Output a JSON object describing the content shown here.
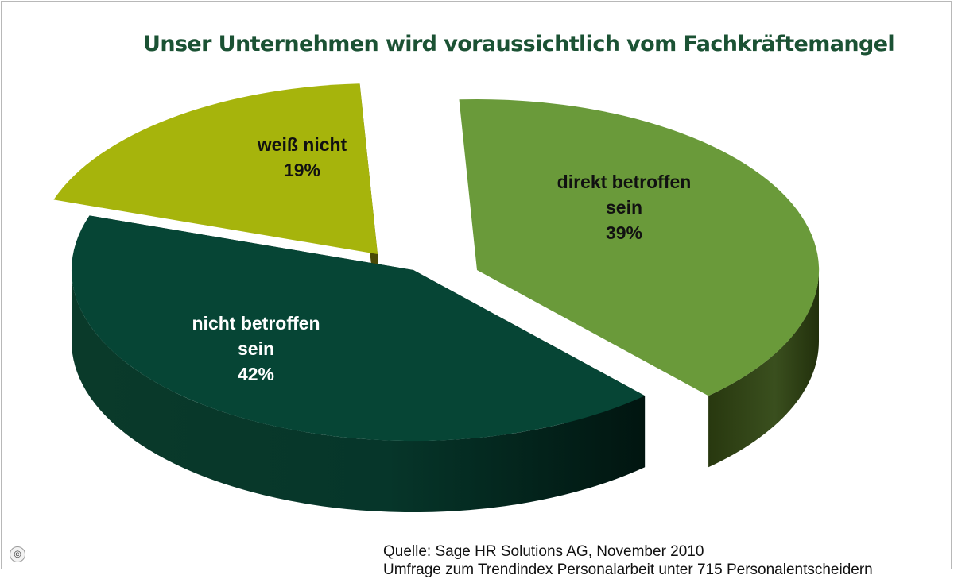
{
  "chart_data": {
    "type": "pie",
    "title": "Unser Unternehmen wird voraussichtlich vom Fachkräftemangel",
    "slices": [
      {
        "label_lines": [
          "direkt betroffen",
          "sein"
        ],
        "value": 39,
        "value_label": "39%",
        "color": "#6a9a3a",
        "side_color": "#2e3f18",
        "label_color": "#111111"
      },
      {
        "label_lines": [
          "nicht betroffen",
          "sein"
        ],
        "value": 42,
        "value_label": "42%",
        "color": "#064535",
        "side_color": "#022219",
        "label_color": "#ffffff"
      },
      {
        "label_lines": [
          "weiß nicht"
        ],
        "value": 19,
        "value_label": "19%",
        "color": "#a6b40c",
        "side_color": "#4a4a06",
        "label_color": "#111111"
      }
    ]
  },
  "footer": {
    "copyright_symbol": "©",
    "source_line1": "Quelle: Sage HR Solutions AG, November 2010",
    "source_line2": "Umfrage zum Trendindex Personalarbeit unter 715  Personalentscheidern"
  }
}
